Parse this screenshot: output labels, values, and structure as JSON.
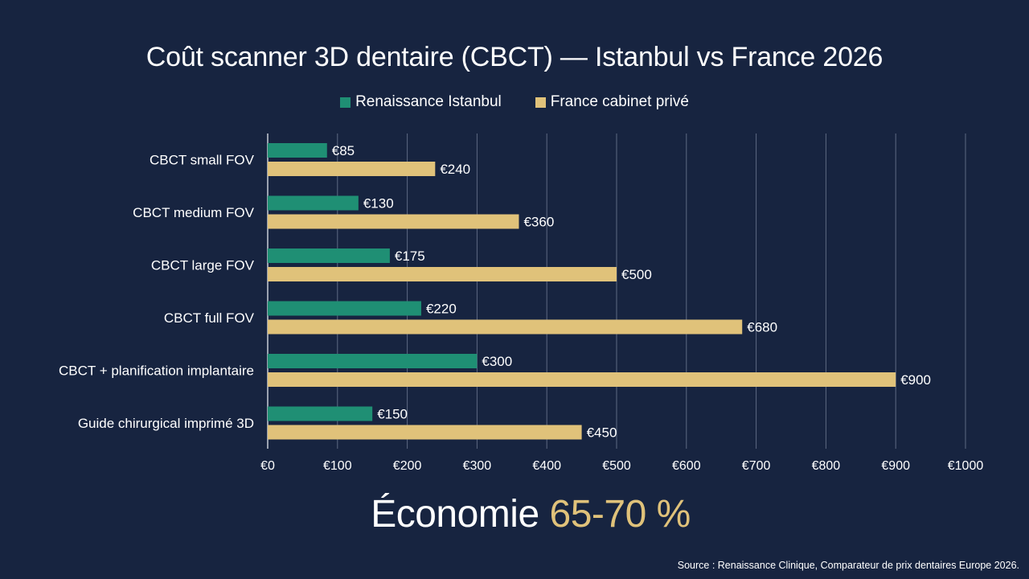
{
  "header": {
    "title": "Coût scanner 3D dentaire (CBCT) — Istanbul vs France 2026"
  },
  "colors": {
    "background": "#172440",
    "istanbul": "#1f8f74",
    "france": "#e0c27a",
    "grid": "#5d6a82"
  },
  "chart_data": {
    "type": "bar",
    "orientation": "horizontal",
    "title": "Coût scanner 3D dentaire (CBCT) — Istanbul vs France 2026",
    "categories": [
      "CBCT small FOV",
      "CBCT medium FOV",
      "CBCT large FOV",
      "CBCT full FOV",
      "CBCT + planification implantaire",
      "Guide chirurgical imprimé 3D"
    ],
    "series": [
      {
        "name": "Renaissance Istanbul",
        "values": [
          85,
          130,
          175,
          220,
          300,
          150
        ],
        "labels": [
          "€85",
          "€130",
          "€175",
          "€220",
          "€300",
          "€150"
        ]
      },
      {
        "name": "France cabinet privé",
        "values": [
          240,
          360,
          500,
          680,
          900,
          450
        ],
        "labels": [
          "€240",
          "€360",
          "€500",
          "€680",
          "€900",
          "€450"
        ]
      }
    ],
    "xlim": [
      0,
      1000
    ],
    "xticks": [
      0,
      100,
      200,
      300,
      400,
      500,
      600,
      700,
      800,
      900,
      1000
    ],
    "xtick_labels": [
      "€0",
      "€100",
      "€200",
      "€300",
      "€400",
      "€500",
      "€600",
      "€700",
      "€800",
      "€900",
      "€1000"
    ],
    "grid": true,
    "legend_position": "top-center"
  },
  "footer": {
    "savings_prefix": "Économie",
    "savings_value": "65-70 %",
    "source": "Source : Renaissance Clinique, Comparateur de prix dentaires Europe 2026."
  }
}
